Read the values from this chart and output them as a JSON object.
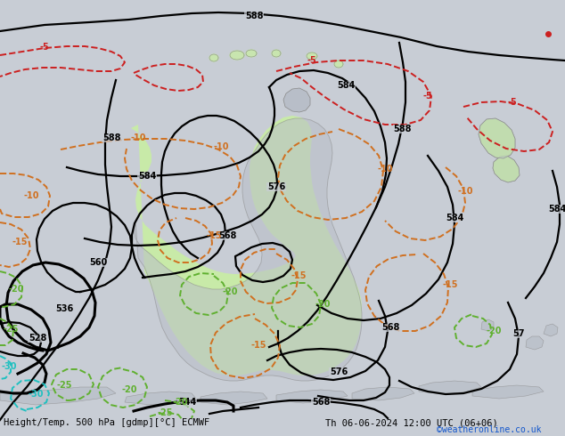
{
  "title_left": "Height/Temp. 500 hPa [gdmp][°C] ECMWF",
  "title_right": "Th 06-06-2024 12:00 UTC (06+06)",
  "watermark": "©weatheronline.co.uk",
  "fig_width": 6.34,
  "fig_height": 4.9,
  "dpi": 100,
  "bg_color": "#c8cdd5",
  "land_color": "#b8bec8",
  "aus_green": "#c8f0a0",
  "nz_green": "#c8f0a0"
}
